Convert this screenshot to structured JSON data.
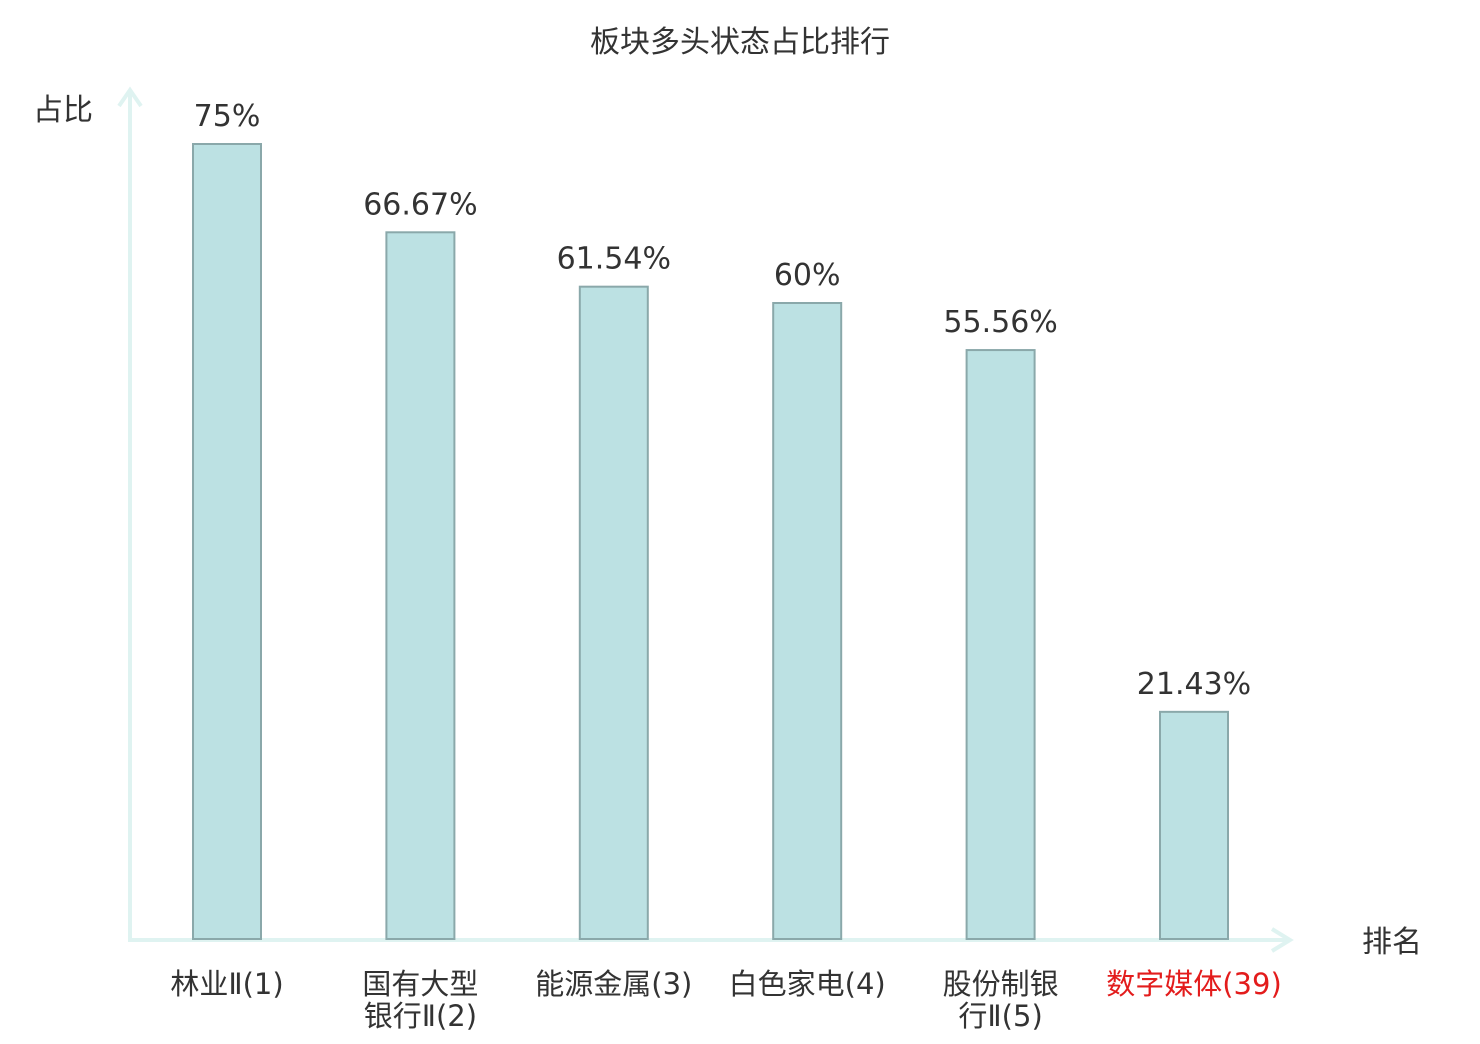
{
  "chart_data": {
    "type": "bar",
    "title": "板块多头状态占比排行",
    "ylabel": "占比",
    "xlabel": "排名",
    "ylim": [
      0,
      80
    ],
    "categories": [
      {
        "lines": [
          "林业Ⅱ(1)"
        ],
        "highlight": false
      },
      {
        "lines": [
          "国有大型",
          "银行Ⅱ(2)"
        ],
        "highlight": false
      },
      {
        "lines": [
          "能源金属(3)"
        ],
        "highlight": false
      },
      {
        "lines": [
          "白色家电(4)"
        ],
        "highlight": false
      },
      {
        "lines": [
          "股份制银",
          "行Ⅱ(5)"
        ],
        "highlight": false
      },
      {
        "lines": [
          "数字媒体(39)"
        ],
        "highlight": true
      }
    ],
    "values": [
      75,
      66.67,
      61.54,
      60,
      55.56,
      21.43
    ],
    "value_labels": [
      "75%",
      "66.67%",
      "61.54%",
      "60%",
      "55.56%",
      "21.43%"
    ],
    "grid": false,
    "legend": "none",
    "colors": {
      "bar_fill": "#bce1e3",
      "bar_stroke": "#8aa8aa",
      "axis": "#dff3f1",
      "text": "#333333",
      "highlight_text": "#e31c1c"
    }
  }
}
